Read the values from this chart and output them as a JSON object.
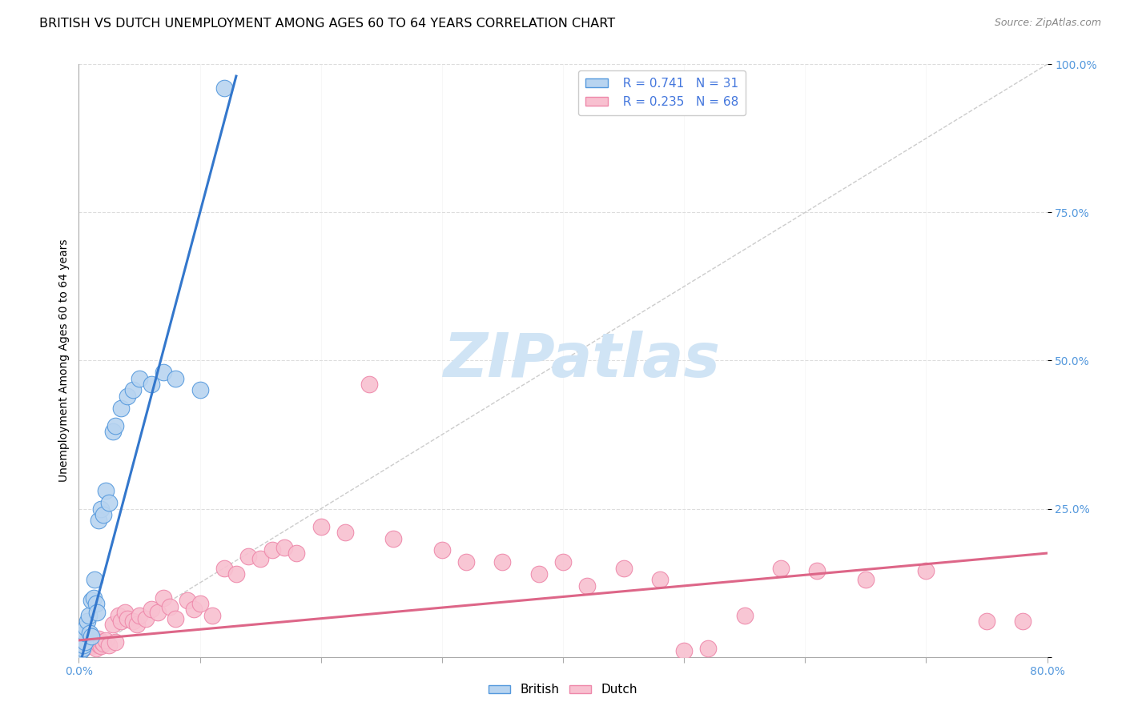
{
  "title": "BRITISH VS DUTCH UNEMPLOYMENT AMONG AGES 60 TO 64 YEARS CORRELATION CHART",
  "source": "Source: ZipAtlas.com",
  "ylabel": "Unemployment Among Ages 60 to 64 years",
  "xlim": [
    0,
    0.8
  ],
  "ylim": [
    0,
    1.0
  ],
  "yticks_right": [
    0.0,
    0.25,
    0.5,
    0.75,
    1.0
  ],
  "yticklabels_right": [
    "",
    "25.0%",
    "50.0%",
    "75.0%",
    "100.0%"
  ],
  "british_fill_color": "#b8d4f0",
  "dutch_fill_color": "#f8c0d0",
  "british_edge_color": "#5599dd",
  "dutch_edge_color": "#ee88aa",
  "british_line_color": "#3377cc",
  "dutch_line_color": "#dd6688",
  "ref_line_color": "#cccccc",
  "legend_text_color": "#4477dd",
  "tick_color": "#5599dd",
  "grid_color": "#dddddd",
  "bg_color": "#ffffff",
  "watermark": "ZIPatlas",
  "watermark_color": "#d0e4f5",
  "title_fontsize": 11.5,
  "ylabel_fontsize": 10,
  "tick_fontsize": 10,
  "source_fontsize": 9,
  "legend_fontsize": 11,
  "british_scatter_x": [
    0.002,
    0.003,
    0.004,
    0.005,
    0.005,
    0.006,
    0.007,
    0.008,
    0.009,
    0.01,
    0.01,
    0.012,
    0.013,
    0.014,
    0.015,
    0.016,
    0.018,
    0.02,
    0.022,
    0.025,
    0.028,
    0.03,
    0.035,
    0.04,
    0.045,
    0.05,
    0.06,
    0.07,
    0.08,
    0.1,
    0.12
  ],
  "british_scatter_y": [
    0.01,
    0.015,
    0.02,
    0.025,
    0.04,
    0.05,
    0.06,
    0.07,
    0.04,
    0.035,
    0.095,
    0.1,
    0.13,
    0.09,
    0.075,
    0.23,
    0.25,
    0.24,
    0.28,
    0.26,
    0.38,
    0.39,
    0.42,
    0.44,
    0.45,
    0.47,
    0.46,
    0.48,
    0.47,
    0.45,
    0.96
  ],
  "dutch_scatter_x": [
    0.002,
    0.003,
    0.004,
    0.005,
    0.006,
    0.007,
    0.008,
    0.009,
    0.01,
    0.011,
    0.012,
    0.013,
    0.014,
    0.015,
    0.016,
    0.017,
    0.018,
    0.019,
    0.02,
    0.022,
    0.025,
    0.028,
    0.03,
    0.033,
    0.035,
    0.038,
    0.04,
    0.045,
    0.048,
    0.05,
    0.055,
    0.06,
    0.065,
    0.07,
    0.075,
    0.08,
    0.09,
    0.095,
    0.1,
    0.11,
    0.12,
    0.13,
    0.14,
    0.15,
    0.16,
    0.17,
    0.18,
    0.2,
    0.22,
    0.24,
    0.26,
    0.3,
    0.32,
    0.35,
    0.38,
    0.4,
    0.42,
    0.45,
    0.48,
    0.5,
    0.52,
    0.55,
    0.58,
    0.61,
    0.65,
    0.7,
    0.75,
    0.78
  ],
  "dutch_scatter_y": [
    0.018,
    0.02,
    0.015,
    0.022,
    0.018,
    0.025,
    0.028,
    0.02,
    0.025,
    0.018,
    0.02,
    0.022,
    0.015,
    0.025,
    0.03,
    0.02,
    0.018,
    0.025,
    0.022,
    0.028,
    0.02,
    0.055,
    0.025,
    0.07,
    0.06,
    0.075,
    0.065,
    0.06,
    0.055,
    0.07,
    0.065,
    0.08,
    0.075,
    0.1,
    0.085,
    0.065,
    0.095,
    0.08,
    0.09,
    0.07,
    0.15,
    0.14,
    0.17,
    0.165,
    0.18,
    0.185,
    0.175,
    0.22,
    0.21,
    0.46,
    0.2,
    0.18,
    0.16,
    0.16,
    0.14,
    0.16,
    0.12,
    0.15,
    0.13,
    0.01,
    0.015,
    0.07,
    0.15,
    0.145,
    0.13,
    0.145,
    0.06,
    0.06
  ],
  "british_trend": [
    0.0,
    0.12,
    -0.01,
    4.2
  ],
  "dutch_trend": [
    0.03,
    0.8,
    0.03,
    0.175
  ]
}
